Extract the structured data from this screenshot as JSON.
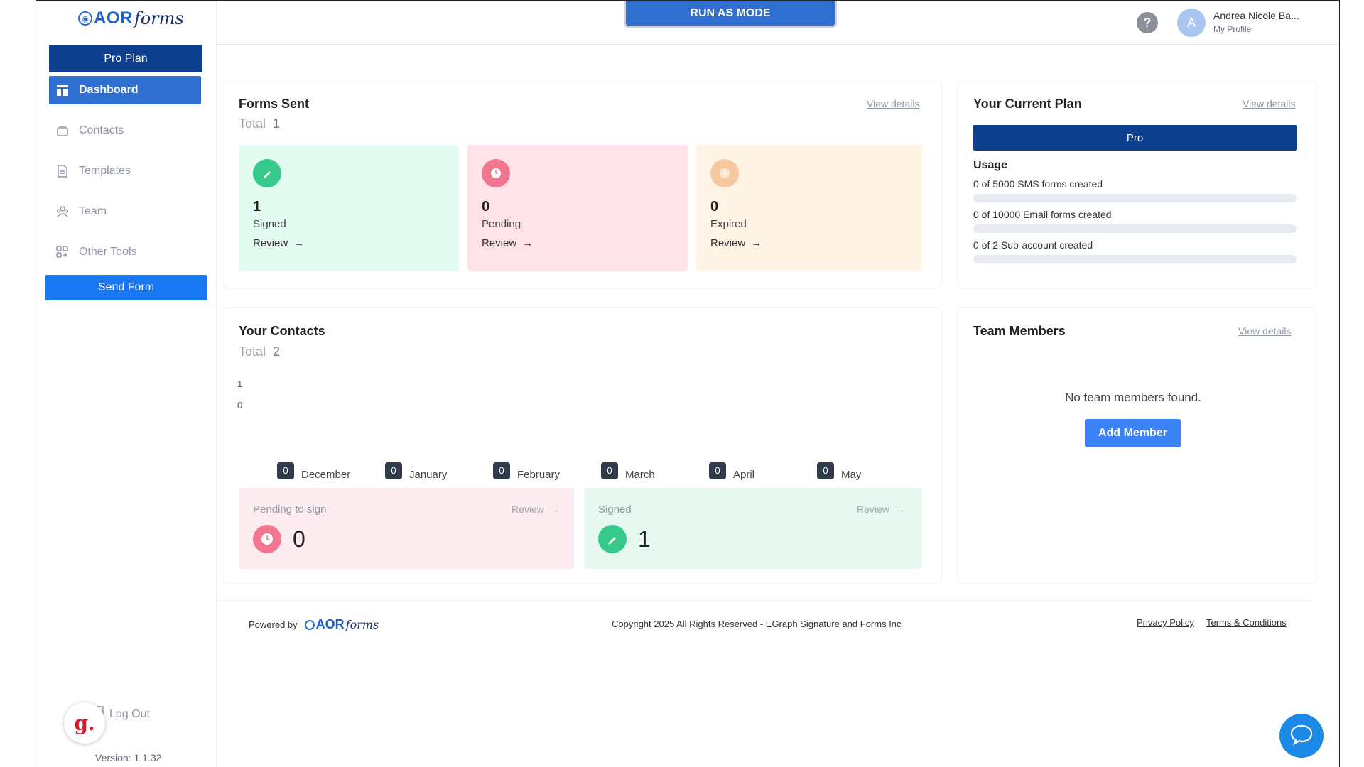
{
  "app": {
    "brand_aor": "AOR",
    "brand_forms": "forms",
    "run_mode": "RUN AS MODE"
  },
  "sidebar": {
    "plan_button": "Pro Plan",
    "items": [
      {
        "label": "Dashboard",
        "icon": "dashboard-icon",
        "active": true
      },
      {
        "label": "Contacts",
        "icon": "contacts-icon"
      },
      {
        "label": "Templates",
        "icon": "templates-icon"
      },
      {
        "label": "Team",
        "icon": "team-icon"
      },
      {
        "label": "Other Tools",
        "icon": "other-tools-icon"
      }
    ],
    "send_form": "Send Form",
    "logout": "Log Out",
    "version": "Version: 1.1.32",
    "assistant_letter": "g."
  },
  "header": {
    "help": "?",
    "avatar_initial": "A",
    "user_name": "Andrea Nicole Ba...",
    "profile_label": "My Profile"
  },
  "forms_sent": {
    "title": "Forms Sent",
    "total_label": "Total",
    "total_value": "1",
    "view_details": "View details",
    "stats": [
      {
        "count": "1",
        "label": "Signed",
        "review": "Review",
        "color": "#e3fbf1",
        "icon_color": "#35c98c"
      },
      {
        "count": "0",
        "label": "Pending",
        "review": "Review",
        "color": "#ffe3e9",
        "icon_color": "#f2768f"
      },
      {
        "count": "0",
        "label": "Expired",
        "review": "Review",
        "color": "#fff4e6",
        "icon_color": "#f8c9a0"
      }
    ]
  },
  "current_plan": {
    "title": "Your Current Plan",
    "view_details": "View details",
    "plan_name": "Pro",
    "usage_title": "Usage",
    "usage": [
      {
        "label": "0 of 5000 SMS forms created",
        "fraction": 0
      },
      {
        "label": "0 of 10000 Email forms created",
        "fraction": 0
      },
      {
        "label": "0 of 2 Sub-account created",
        "fraction": 0
      }
    ]
  },
  "contacts": {
    "title": "Your Contacts",
    "total_label": "Total",
    "total_value": "2",
    "y_ticks": [
      "1",
      "0"
    ],
    "months": [
      {
        "value": "0",
        "name": "December"
      },
      {
        "value": "0",
        "name": "January"
      },
      {
        "value": "0",
        "name": "February"
      },
      {
        "value": "0",
        "name": "March"
      },
      {
        "value": "0",
        "name": "April"
      },
      {
        "value": "0",
        "name": "May"
      }
    ],
    "pending": {
      "label": "Pending to sign",
      "review": "Review",
      "value": "0"
    },
    "signed": {
      "label": "Signed",
      "review": "Review",
      "value": "1"
    }
  },
  "team": {
    "title": "Team Members",
    "view_details": "View details",
    "empty": "No team members found.",
    "add_button": "Add Member"
  },
  "footer": {
    "powered_by": "Powered by",
    "copyright": "Copyright 2025 All Rights Reserved - EGraph Signature and Forms Inc",
    "privacy": "Privacy Policy",
    "terms": "Terms & Conditions"
  }
}
